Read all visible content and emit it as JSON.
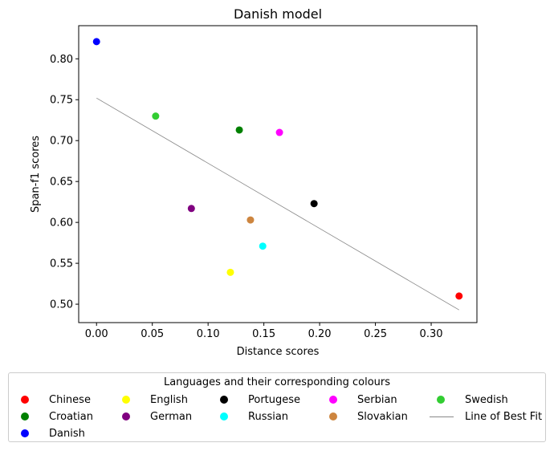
{
  "chart_data": {
    "type": "scatter",
    "title": "Danish model",
    "xlabel": "Distance scores",
    "ylabel": "Span-f1 scores",
    "xlim": [
      -0.016,
      0.341
    ],
    "ylim": [
      0.4775,
      0.8405
    ],
    "xticks": [
      0.0,
      0.05,
      0.1,
      0.15,
      0.2,
      0.25,
      0.3
    ],
    "xtick_labels": [
      "0.00",
      "0.05",
      "0.10",
      "0.15",
      "0.20",
      "0.25",
      "0.30"
    ],
    "yticks": [
      0.5,
      0.55,
      0.6,
      0.65,
      0.7,
      0.75,
      0.8
    ],
    "ytick_labels": [
      "0.50",
      "0.55",
      "0.60",
      "0.65",
      "0.70",
      "0.75",
      "0.80"
    ],
    "grid": false,
    "series": [
      {
        "name": "Chinese",
        "color": "#ff0000",
        "x": 0.325,
        "y": 0.51
      },
      {
        "name": "Croatian",
        "color": "#008000",
        "x": 0.128,
        "y": 0.713
      },
      {
        "name": "Danish",
        "color": "#0000ff",
        "x": 0.0,
        "y": 0.821
      },
      {
        "name": "English",
        "color": "#ffff00",
        "x": 0.12,
        "y": 0.539
      },
      {
        "name": "German",
        "color": "#800080",
        "x": 0.085,
        "y": 0.617
      },
      {
        "name": "Portugese",
        "color": "#000000",
        "x": 0.195,
        "y": 0.623
      },
      {
        "name": "Russian",
        "color": "#00ffff",
        "x": 0.149,
        "y": 0.571
      },
      {
        "name": "Serbian",
        "color": "#ff00ff",
        "x": 0.164,
        "y": 0.71
      },
      {
        "name": "Slovakian",
        "color": "#cd853f",
        "x": 0.138,
        "y": 0.603
      },
      {
        "name": "Swedish",
        "color": "#32cd32",
        "x": 0.053,
        "y": 0.73
      }
    ],
    "best_fit": {
      "name": "Line of Best Fit",
      "color": "#888888",
      "x": [
        0.0,
        0.325
      ],
      "y": [
        0.752,
        0.493
      ]
    },
    "legend": {
      "title": "Languages and their corresponding colours",
      "placement": "below"
    }
  }
}
